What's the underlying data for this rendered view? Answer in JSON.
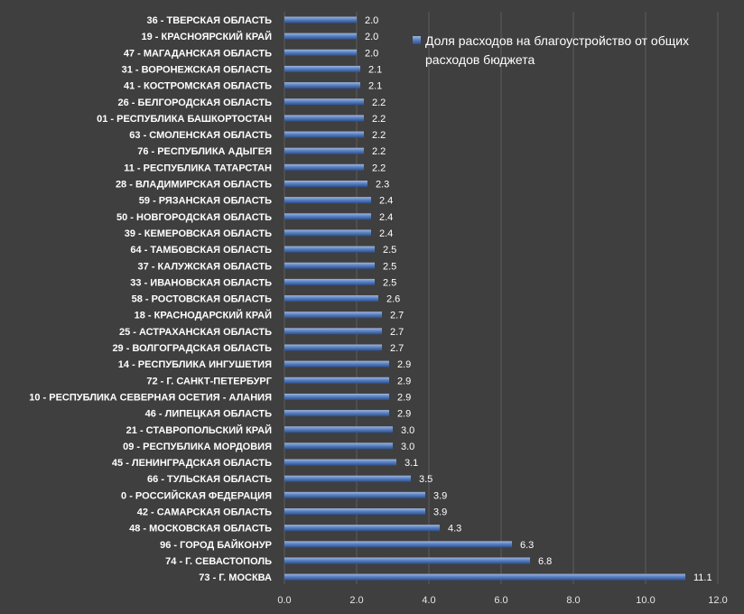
{
  "chart_data": {
    "type": "bar",
    "orientation": "horizontal",
    "categories": [
      "36 - ТВЕРСКАЯ ОБЛАСТЬ",
      "19 - КРАСНОЯРСКИЙ КРАЙ",
      "47 - МАГАДАНСКАЯ ОБЛАСТЬ",
      "31 - ВОРОНЕЖСКАЯ ОБЛАСТЬ",
      "41 - КОСТРОМСКАЯ ОБЛАСТЬ",
      "26 - БЕЛГОРОДСКАЯ ОБЛАСТЬ",
      "01 - РЕСПУБЛИКА БАШКОРТОСТАН",
      "63 - СМОЛЕНСКАЯ ОБЛАСТЬ",
      "76 - РЕСПУБЛИКА АДЫГЕЯ",
      "11 - РЕСПУБЛИКА ТАТАРСТАН",
      "28 - ВЛАДИМИРСКАЯ ОБЛАСТЬ",
      "59 - РЯЗАНСКАЯ ОБЛАСТЬ",
      "50 - НОВГОРОДСКАЯ ОБЛАСТЬ",
      "39 - КЕМЕРОВСКАЯ ОБЛАСТЬ",
      "64 - ТАМБОВСКАЯ ОБЛАСТЬ",
      "37 - КАЛУЖСКАЯ ОБЛАСТЬ",
      "33 - ИВАНОВСКАЯ ОБЛАСТЬ",
      "58 - РОСТОВСКАЯ ОБЛАСТЬ",
      "18 - КРАСНОДАРСКИЙ КРАЙ",
      "25 - АСТРАХАНСКАЯ ОБЛАСТЬ",
      "29 - ВОЛГОГРАДСКАЯ ОБЛАСТЬ",
      "14 - РЕСПУБЛИКА ИНГУШЕТИЯ",
      "72 - Г. САНКТ-ПЕТЕРБУРГ",
      "10 - РЕСПУБЛИКА СЕВЕРНАЯ ОСЕТИЯ - АЛАНИЯ",
      "46 - ЛИПЕЦКАЯ ОБЛАСТЬ",
      "21 - СТАВРОПОЛЬСКИЙ КРАЙ",
      "09 - РЕСПУБЛИКА МОРДОВИЯ",
      "45 - ЛЕНИНГРАДСКАЯ ОБЛАСТЬ",
      "66 - ТУЛЬСКАЯ ОБЛАСТЬ",
      "0 - РОССИЙСКАЯ ФЕДЕРАЦИЯ",
      "42 - САМАРСКАЯ ОБЛАСТЬ",
      "48 - МОСКОВСКАЯ ОБЛАСТЬ",
      "96 - ГОРОД БАЙКОНУР",
      "74 - Г. СЕВАСТОПОЛЬ",
      "73 - Г. МОСКВА"
    ],
    "series": [
      {
        "name": "Доля расходов на благоустройство от общих расходов бюджета",
        "values": [
          2.0,
          2.0,
          2.0,
          2.1,
          2.1,
          2.2,
          2.2,
          2.2,
          2.2,
          2.2,
          2.3,
          2.4,
          2.4,
          2.4,
          2.5,
          2.5,
          2.5,
          2.6,
          2.7,
          2.7,
          2.7,
          2.9,
          2.9,
          2.9,
          2.9,
          3.0,
          3.0,
          3.1,
          3.5,
          3.9,
          3.9,
          4.3,
          6.3,
          6.8,
          11.1
        ],
        "labels": [
          "2.0",
          "2.0",
          "2.0",
          "2.1",
          "2.1",
          "2.2",
          "2.2",
          "2.2",
          "2.2",
          "2.2",
          "2.3",
          "2.4",
          "2.4",
          "2.4",
          "2.5",
          "2.5",
          "2.5",
          "2.6",
          "2.7",
          "2.7",
          "2.7",
          "2.9",
          "2.9",
          "2.9",
          "2.9",
          "3.0",
          "3.0",
          "3.1",
          "3.5",
          "3.9",
          "3.9",
          "4.3",
          "6.3",
          "6.8",
          "11.1"
        ]
      }
    ],
    "legend_lines": [
      "Доля расходов на благоустройство от общих",
      "расходов бюджета"
    ],
    "xlim": [
      0,
      12
    ],
    "x_ticks": [
      0,
      2,
      4,
      6,
      8,
      10,
      12
    ],
    "x_tick_labels": [
      "0.0",
      "2.0",
      "4.0",
      "6.0",
      "8.0",
      "10.0",
      "12.0"
    ],
    "title": "",
    "xlabel": "",
    "ylabel": "",
    "grid": true,
    "legend_position": "top-right",
    "colors": {
      "background": "#3f3f3f",
      "grid": "#5c5c5c",
      "bar_light": "#9fb6dd",
      "bar_mid": "#5b82c2",
      "bar_dark": "#2c4f8e",
      "text": "#ffffff"
    }
  }
}
